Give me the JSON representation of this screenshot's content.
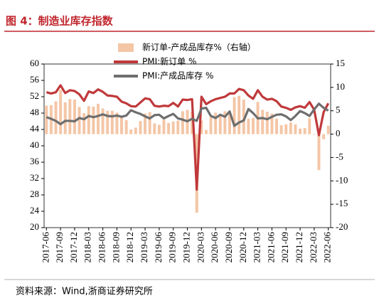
{
  "chart_data": {
    "type": "combo",
    "title": "图 4：制造业库存指数",
    "source": "资料来源：Wind,浙商证券研究所",
    "categories": [
      "2017-06",
      null,
      null,
      "2017-09",
      null,
      null,
      "2017-12",
      null,
      null,
      "2018-03",
      null,
      null,
      "2018-06",
      null,
      null,
      "2018-09",
      null,
      null,
      "2018-12",
      null,
      null,
      "2019-03",
      null,
      null,
      "2019-06",
      null,
      null,
      "2019-09",
      null,
      null,
      "2019-12",
      null,
      null,
      "2020-03",
      null,
      null,
      "2020-06",
      null,
      null,
      "2020-09",
      null,
      null,
      "2020-12",
      null,
      null,
      "2021-03",
      null,
      null,
      "2021-06",
      null,
      null,
      "2021-09",
      null,
      null,
      "2021-12",
      null,
      null,
      "2022-03",
      null,
      null,
      "2022-06"
    ],
    "series": [
      {
        "name": "新订单-产成品库存%（右轴）",
        "type": "bar",
        "axis": "y2",
        "color": "#f4c6a6",
        "values": [
          6.1,
          6.2,
          7.0,
          9.5,
          6.8,
          7.5,
          7.4,
          5.8,
          4.5,
          6.0,
          5.9,
          6.5,
          5.5,
          5.0,
          5.0,
          4.6,
          3.7,
          3.0,
          1.0,
          1.4,
          2.8,
          4.4,
          4.7,
          2.3,
          2.0,
          3.1,
          2.4,
          2.7,
          2.9,
          4.9,
          5.2,
          4.8,
          -16.8,
          2.9,
          0.9,
          3.6,
          4.6,
          4.1,
          4.9,
          4.4,
          7.9,
          8.2,
          7.4,
          3.3,
          3.5,
          6.9,
          5.2,
          4.8,
          4.4,
          3.3,
          1.9,
          2.1,
          2.5,
          2.1,
          1.2,
          1.3,
          3.4,
          -0.1,
          -7.7,
          -1.1,
          1.8
        ]
      },
      {
        "name": "PMI:新订单 %",
        "type": "line",
        "color": "#c0393b",
        "values": [
          53.1,
          52.8,
          53.1,
          54.8,
          52.9,
          53.6,
          53.4,
          52.6,
          51.0,
          53.3,
          52.9,
          53.8,
          53.2,
          52.3,
          52.2,
          52.0,
          50.8,
          50.4,
          49.7,
          49.6,
          50.6,
          51.6,
          51.4,
          49.8,
          49.6,
          49.8,
          49.7,
          50.5,
          49.6,
          51.3,
          51.2,
          51.4,
          29.3,
          52.0,
          50.2,
          50.9,
          51.4,
          51.7,
          52.0,
          52.8,
          52.8,
          53.9,
          53.6,
          52.3,
          51.5,
          53.6,
          52.0,
          51.3,
          51.5,
          50.9,
          49.6,
          49.3,
          48.8,
          49.4,
          49.7,
          49.3,
          50.7,
          48.8,
          42.6,
          48.2,
          50.4
        ]
      },
      {
        "name": "PMI:产成品库存 %",
        "type": "line",
        "color": "#6e6e6e",
        "values": [
          47.0,
          46.6,
          46.1,
          45.3,
          46.1,
          46.1,
          46.0,
          46.8,
          46.5,
          47.3,
          47.0,
          47.3,
          47.7,
          47.3,
          47.2,
          47.4,
          47.1,
          47.4,
          48.7,
          48.2,
          47.8,
          47.2,
          46.7,
          47.5,
          47.6,
          46.7,
          47.3,
          47.8,
          46.7,
          46.4,
          46.0,
          46.6,
          46.1,
          49.1,
          49.3,
          47.3,
          46.8,
          47.6,
          47.1,
          48.4,
          44.9,
          45.7,
          46.2,
          49.0,
          48.0,
          46.7,
          46.8,
          46.5,
          47.1,
          47.6,
          47.7,
          47.2,
          46.3,
          47.3,
          48.5,
          48.0,
          47.3,
          48.9,
          50.3,
          49.3,
          48.6
        ]
      }
    ],
    "ylim": [
      20,
      60
    ],
    "yticks": [
      20,
      24,
      28,
      32,
      36,
      40,
      44,
      48,
      52,
      56,
      60
    ],
    "y2lim": [
      -20,
      15
    ],
    "y2ticks": [
      -20,
      -15,
      -10,
      -5,
      0,
      5,
      10,
      15
    ]
  }
}
